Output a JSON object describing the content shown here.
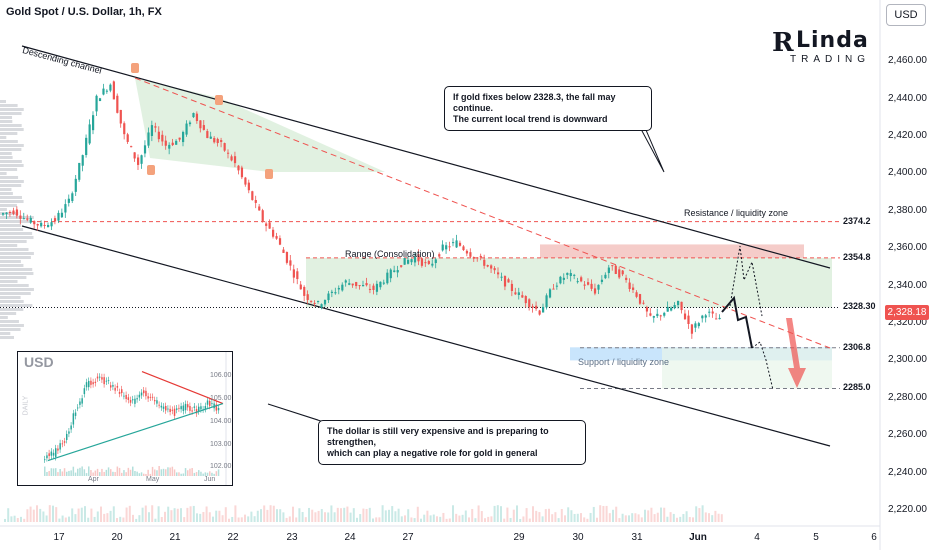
{
  "header": {
    "title": "Gold Spot / U.S. Dollar, 1h, FX",
    "currency_badge": "USD"
  },
  "logo": {
    "mark": "R",
    "name": "Linda",
    "sub": "TRADING"
  },
  "chart_data": {
    "type": "candlestick",
    "title": "Gold Spot / U.S. Dollar, 1h, FX",
    "y_ticks": [
      "2,460.00",
      "2,440.00",
      "2,420.00",
      "2,400.00",
      "2,380.00",
      "2,360.00",
      "2,340.00",
      "2,320.00",
      "2,300.00",
      "2,280.00",
      "2,260.00",
      "2,240.00",
      "2,220.00"
    ],
    "y_tick_values": [
      2460,
      2440,
      2420,
      2400,
      2380,
      2360,
      2340,
      2320,
      2300,
      2280,
      2260,
      2240,
      2220
    ],
    "ylim": [
      2212,
      2482
    ],
    "x_ticks": [
      "17",
      "20",
      "21",
      "22",
      "23",
      "24",
      "27",
      "29",
      "30",
      "31",
      "Jun",
      "4",
      "5",
      "6"
    ],
    "last_price": "2,328.18",
    "close_path": [
      2378,
      2380,
      2375,
      2372,
      2375,
      2385,
      2410,
      2440,
      2448,
      2420,
      2405,
      2425,
      2415,
      2418,
      2432,
      2420,
      2415,
      2405,
      2390,
      2375,
      2365,
      2350,
      2335,
      2330,
      2336,
      2342,
      2340,
      2338,
      2345,
      2352,
      2355,
      2350,
      2360,
      2363,
      2357,
      2352,
      2345,
      2338,
      2332,
      2326,
      2340,
      2346,
      2342,
      2337,
      2350,
      2345,
      2335,
      2322,
      2326,
      2330,
      2316,
      2326,
      2321
    ],
    "levels": [
      {
        "label": "2374.2",
        "value": 2374.2
      },
      {
        "label": "2354.8",
        "value": 2354.8
      },
      {
        "label": "2328.30",
        "value": 2328.3
      },
      {
        "label": "2306.8",
        "value": 2306.8
      },
      {
        "label": "2285.0",
        "value": 2285.0
      }
    ],
    "annotations": {
      "channel": "Descending channel",
      "range": "Range (Consolidation)",
      "resistance": "Resistance / liquidity zone",
      "support": "Support / liquidity zone",
      "callout_top_line1": "If gold fixes below 2328.3, the fall may continue.",
      "callout_top_line2": "The current local trend is downward",
      "callout_bottom_line1": "The dollar is still very expensive and is preparing to strengthen,",
      "callout_bottom_line2": "which can play a negative role for gold in general"
    },
    "colors": {
      "up": "#26a69a",
      "down": "#ef5350",
      "level": "#ef5350",
      "zone_green": "#c8e6c9",
      "zone_red": "#f4c7c3",
      "zone_blue": "#bbdefb"
    }
  },
  "inset": {
    "title": "USD",
    "y_ticks": [
      "106.00",
      "105.00",
      "104.00",
      "103.00",
      "102.00"
    ],
    "x_ticks": [
      "Apr",
      "May",
      "Jun"
    ],
    "side_label": "DAILY"
  }
}
